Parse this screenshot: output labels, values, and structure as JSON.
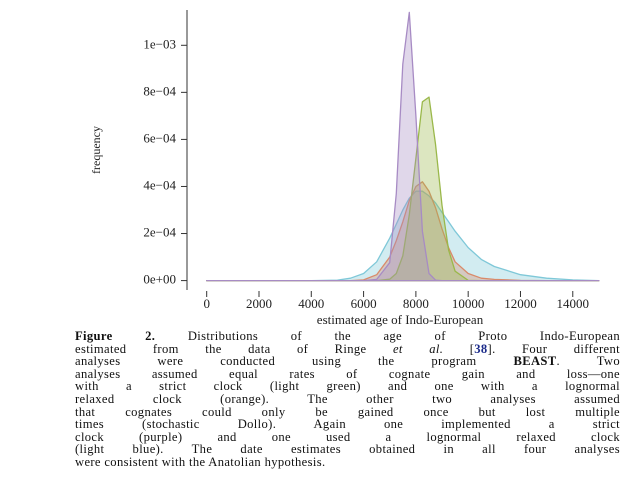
{
  "chart_data": {
    "type": "density",
    "xlabel": "estimated age of Indo-European",
    "ylabel": "frequency",
    "x": [
      0,
      2000,
      4000,
      5000,
      5500,
      6000,
      6500,
      7000,
      7250,
      7500,
      7750,
      8000,
      8250,
      8500,
      8750,
      9000,
      9250,
      9500,
      10000,
      10500,
      11000,
      12000,
      13000,
      14000,
      15000
    ],
    "series": [
      {
        "color": "#7fc8d8",
        "values": [
          0,
          0,
          0,
          2e-06,
          1e-05,
          3e-05,
          8e-05,
          0.00018,
          0.00024,
          0.0003,
          0.00035,
          0.00038,
          0.00038,
          0.00036,
          0.00033,
          0.00029,
          0.00025,
          0.00021,
          0.00014,
          9e-05,
          6e-05,
          2.5e-05,
          1e-05,
          3e-06,
          0
        ]
      },
      {
        "color": "#d98a6a",
        "values": [
          0,
          0,
          0,
          0,
          0,
          3e-06,
          2.5e-05,
          0.0001,
          0.00017,
          0.00025,
          0.00034,
          0.0004,
          0.00042,
          0.00038,
          0.00031,
          0.00022,
          0.00014,
          8e-05,
          3e-05,
          1e-05,
          5e-06,
          1e-06,
          0,
          0,
          0
        ]
      },
      {
        "color": "#9ab84a",
        "values": [
          0,
          0,
          0,
          0,
          0,
          0,
          0,
          6e-06,
          3e-05,
          0.000105,
          0.00028,
          0.00052,
          0.00076,
          0.00078,
          0.00058,
          0.00032,
          0.00013,
          4e-05,
          1e-06,
          0,
          0,
          0,
          0,
          0,
          0
        ]
      },
      {
        "color": "#a78bc4",
        "values": [
          0,
          0,
          0,
          0,
          0,
          0,
          5e-06,
          7.6e-05,
          0.00037,
          0.00092,
          0.00114,
          0.0007,
          0.00021,
          3e-05,
          2e-06,
          0,
          0,
          0,
          0,
          0,
          0,
          0,
          0,
          0,
          0
        ]
      }
    ],
    "xlim": [
      -600,
      15500
    ],
    "ylim": [
      -4e-05,
      0.00115
    ],
    "xticks": [
      0,
      2000,
      4000,
      6000,
      8000,
      10000,
      12000,
      14000
    ],
    "yticks": [
      {
        "value": 0,
        "label": "0e+00"
      },
      {
        "value": 0.0002,
        "label": "2e−04"
      },
      {
        "value": 0.0004,
        "label": "4e−04"
      },
      {
        "value": 0.0006,
        "label": "6e−04"
      },
      {
        "value": 0.0008,
        "label": "8e−04"
      },
      {
        "value": 0.001,
        "label": "1e−03"
      }
    ]
  },
  "caption": {
    "lines": [
      [
        "Figure 2.",
        " Distributions of the age of Proto Indo-European"
      ],
      [
        "estimated from the data of Ringe ",
        "et al.",
        " [",
        "38",
        "]. Four different"
      ],
      [
        "analyses were conducted using the program ",
        "BEAST",
        ". Two"
      ],
      [
        "analyses assumed equal rates of cognate gain and loss—one"
      ],
      [
        "with a strict clock (light green) and one with a lognormal"
      ],
      [
        "relaxed clock (orange). The other two analyses assumed"
      ],
      [
        "that cognates could only be gained once but lost multiple"
      ],
      [
        "times (stochastic Dollo). Again one implemented a strict"
      ],
      [
        "clock (purple) and one used a lognormal relaxed clock"
      ],
      [
        "(light blue). The date estimates obtained in all four analyses"
      ],
      [
        "were consistent with the Anatolian hypothesis."
      ]
    ]
  }
}
